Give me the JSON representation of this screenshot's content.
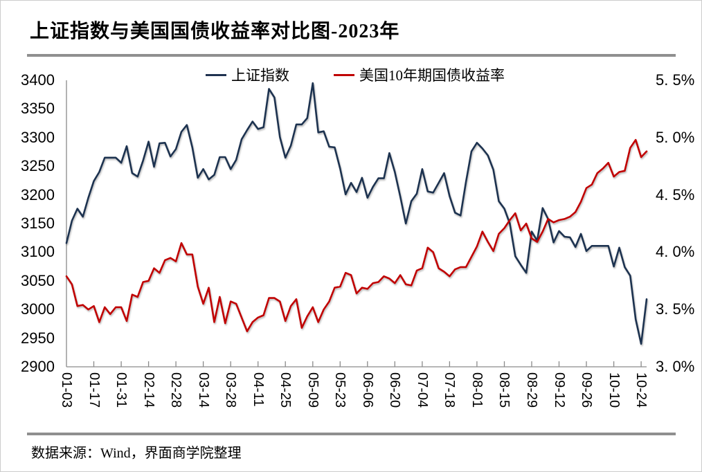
{
  "page": {
    "source_note": "数据来源：Wind，界面商学院整理"
  },
  "chart_data": {
    "type": "line",
    "title": "上证指数与美国国债收益率对比图-2023年",
    "legend_position": "top",
    "grid": false,
    "x_tick_labels": [
      "01-03",
      "01-17",
      "01-31",
      "02-14",
      "02-28",
      "03-14",
      "03-28",
      "04-11",
      "04-25",
      "05-09",
      "05-23",
      "06-06",
      "06-20",
      "07-04",
      "07-18",
      "08-01",
      "08-15",
      "08-29",
      "09-12",
      "09-26",
      "10-10",
      "10-24"
    ],
    "left_axis": {
      "min": 2900,
      "max": 3400,
      "tick_step": 50,
      "tick_labels": [
        "3400",
        "3350",
        "3300",
        "3250",
        "3200",
        "3150",
        "3100",
        "3050",
        "3000",
        "2950",
        "2900"
      ]
    },
    "right_axis": {
      "min": 3.0,
      "max": 5.5,
      "tick_step": 0.5,
      "tick_labels": [
        "5. 5%",
        "5. 0%",
        "4. 5%",
        "4. 0%",
        "3. 5%",
        "3. 0%"
      ]
    },
    "axis_color": "#8a8a8a",
    "series": [
      {
        "name": "上证指数",
        "axis": "left",
        "color": "#1F3250",
        "values": [
          3116,
          3155,
          3176,
          3162,
          3195,
          3224,
          3240,
          3265,
          3265,
          3265,
          3256,
          3285,
          3238,
          3232,
          3260,
          3293,
          3249,
          3290,
          3291,
          3267,
          3280,
          3310,
          3322,
          3283,
          3230,
          3245,
          3227,
          3235,
          3266,
          3266,
          3245,
          3261,
          3297,
          3313,
          3328,
          3315,
          3318,
          3385,
          3370,
          3301,
          3265,
          3286,
          3323,
          3323,
          3334,
          3395,
          3309,
          3311,
          3284,
          3283,
          3246,
          3201,
          3221,
          3205,
          3230,
          3195,
          3214,
          3229,
          3229,
          3273,
          3240,
          3197,
          3150,
          3189,
          3202,
          3245,
          3206,
          3204,
          3221,
          3238,
          3198,
          3169,
          3164,
          3223,
          3276,
          3291,
          3281,
          3269,
          3244,
          3189,
          3176,
          3150,
          3093,
          3078,
          3064,
          3136,
          3120,
          3177,
          3158,
          3117,
          3137,
          3127,
          3126,
          3109,
          3132,
          3102,
          3111,
          3111,
          3111,
          3111,
          3075,
          3108,
          3074,
          3059,
          2983,
          2940,
          3018
        ]
      },
      {
        "name": "美国10年期国债收益率",
        "axis": "right",
        "color": "#C00000",
        "values": [
          3.79,
          3.72,
          3.53,
          3.54,
          3.5,
          3.53,
          3.39,
          3.52,
          3.46,
          3.52,
          3.52,
          3.4,
          3.63,
          3.61,
          3.74,
          3.75,
          3.86,
          3.82,
          3.93,
          3.95,
          3.92,
          4.08,
          3.98,
          3.98,
          3.7,
          3.55,
          3.69,
          3.39,
          3.61,
          3.38,
          3.57,
          3.55,
          3.43,
          3.31,
          3.39,
          3.43,
          3.45,
          3.6,
          3.6,
          3.57,
          3.4,
          3.53,
          3.59,
          3.34,
          3.44,
          3.52,
          3.39,
          3.5,
          3.57,
          3.69,
          3.7,
          3.82,
          3.8,
          3.64,
          3.69,
          3.68,
          3.73,
          3.74,
          3.79,
          3.77,
          3.73,
          3.8,
          3.72,
          3.71,
          3.84,
          3.86,
          4.04,
          4.0,
          3.86,
          3.83,
          3.79,
          3.85,
          3.87,
          3.87,
          3.96,
          4.05,
          4.18,
          4.09,
          4.01,
          4.16,
          4.21,
          4.28,
          4.34,
          4.19,
          4.25,
          4.12,
          4.09,
          4.18,
          4.29,
          4.26,
          4.28,
          4.29,
          4.31,
          4.35,
          4.44,
          4.56,
          4.59,
          4.69,
          4.73,
          4.78,
          4.66,
          4.7,
          4.71,
          4.91,
          4.98,
          4.83,
          4.88
        ]
      }
    ]
  }
}
